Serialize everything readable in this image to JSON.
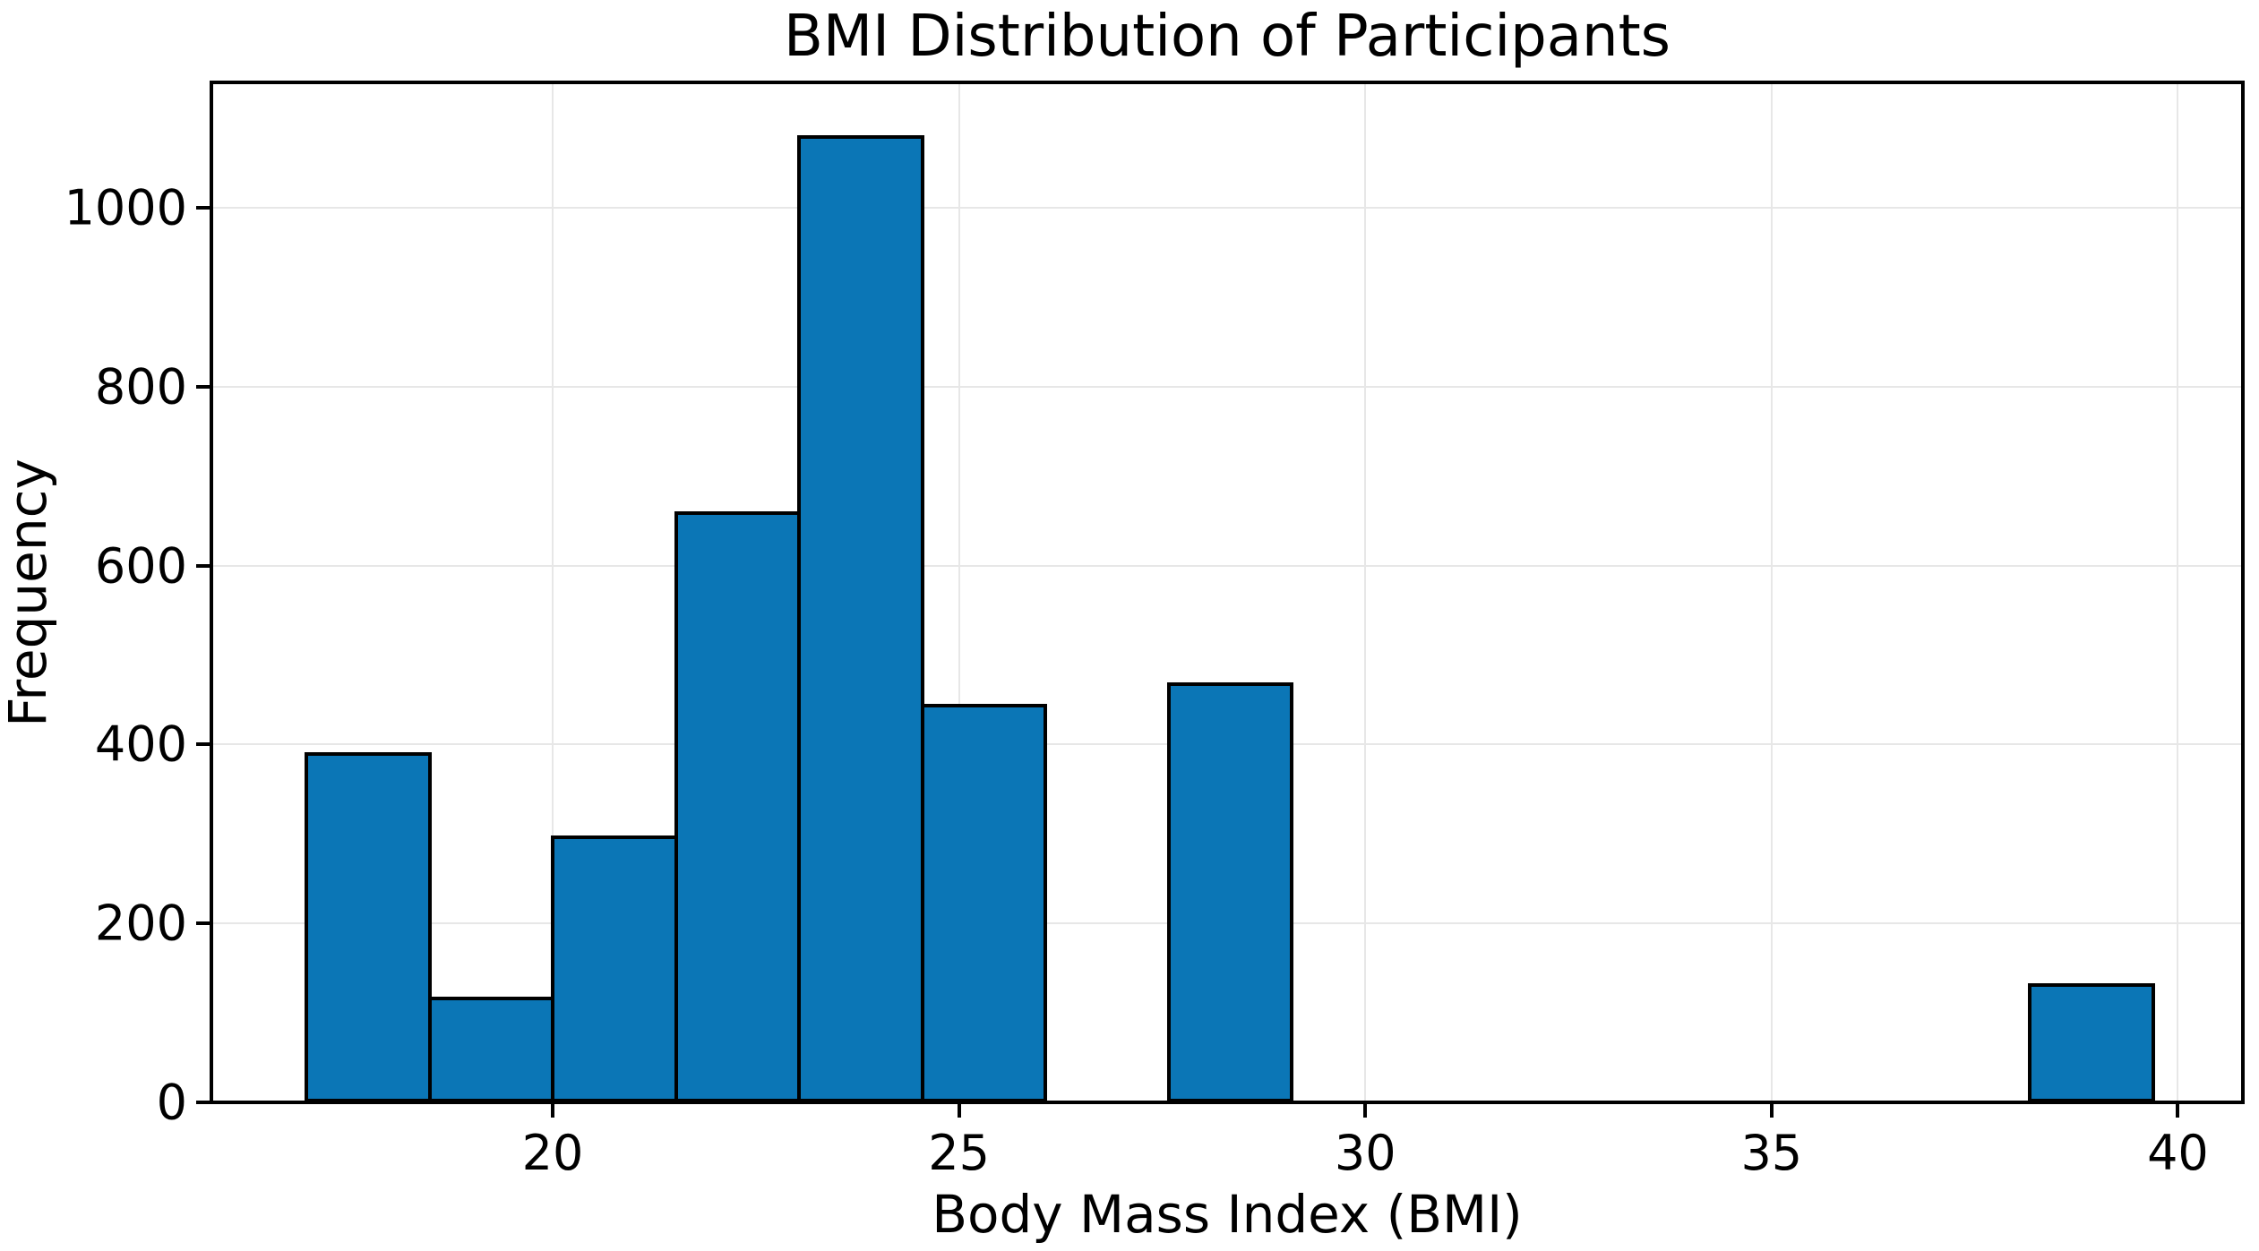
{
  "figure": {
    "background": "#ffffff"
  },
  "chart_data": {
    "type": "histogram",
    "title": "BMI Distribution of Participants",
    "xlabel": "Body Mass Index (BMI)",
    "ylabel": "Frequency",
    "bin_edges": [
      16.97,
      18.49,
      20.0,
      21.52,
      23.03,
      24.55,
      26.06,
      27.58,
      29.09,
      30.61,
      32.12,
      33.64,
      35.15,
      36.67,
      38.18,
      39.7
    ],
    "counts": [
      391,
      118,
      298,
      661,
      1081,
      445,
      0,
      469,
      0,
      0,
      0,
      0,
      0,
      0,
      133
    ],
    "x_ticks": [
      20,
      25,
      30,
      35,
      40
    ],
    "y_ticks": [
      0,
      200,
      400,
      600,
      800,
      1000
    ],
    "xlim": [
      15.8,
      40.8
    ],
    "ylim": [
      0,
      1140
    ],
    "grid": true,
    "legend": "none",
    "bar_color": "#0b76b6",
    "bar_edge_color": "#000000",
    "grid_color": "#e7e7e7",
    "axis_color": "#000000",
    "text_color": "#000000"
  }
}
